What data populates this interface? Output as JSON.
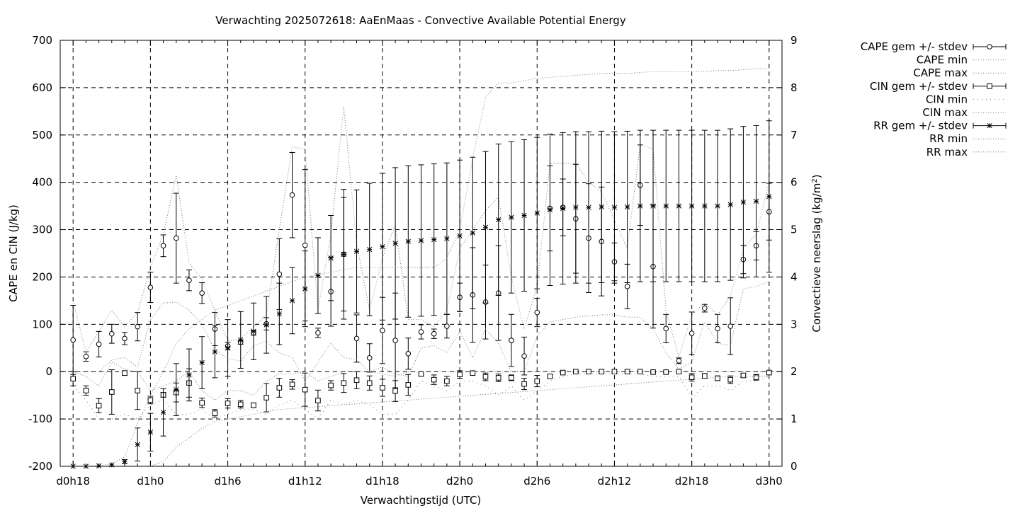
{
  "chart_data": {
    "type": "line",
    "title": "Verwachting 2025072618: AaEnMaas - Convective Available Potential Energy",
    "xlabel": "Verwachtingstijd (UTC)",
    "ylabel_left": "CAPE en CIN (J/kg)",
    "ylabel_right": "Convectieve neerslag (kg/m",
    "ylabel_right_sup": "2",
    "ylabel_right_end": ")",
    "x_unit": "hours since d0h18",
    "xlim": [
      -1,
      55
    ],
    "ylim_left": [
      -200,
      700
    ],
    "ylim_right": [
      0,
      9
    ],
    "y_ticks_left": [
      -200,
      -100,
      0,
      100,
      200,
      300,
      400,
      500,
      600,
      700
    ],
    "y_ticks_right": [
      0,
      1,
      2,
      3,
      4,
      5,
      6,
      7,
      8,
      9
    ],
    "x_ticks": [
      {
        "x": 0,
        "label": "d0h18"
      },
      {
        "x": 6,
        "label": "d1h0"
      },
      {
        "x": 12,
        "label": "d1h6"
      },
      {
        "x": 18,
        "label": "d1h12"
      },
      {
        "x": 24,
        "label": "d1h18"
      },
      {
        "x": 30,
        "label": "d2h0"
      },
      {
        "x": 36,
        "label": "d2h6"
      },
      {
        "x": 42,
        "label": "d2h12"
      },
      {
        "x": 48,
        "label": "d2h18"
      },
      {
        "x": 54,
        "label": "d3h0"
      }
    ],
    "grid": true,
    "legend_position": "outside-right",
    "legend": [
      {
        "label": "CAPE gem +/- stdev",
        "style": "errorbar",
        "marker": "circle"
      },
      {
        "label": "CAPE min",
        "style": "dotted"
      },
      {
        "label": "CAPE max",
        "style": "dotted"
      },
      {
        "label": "CIN gem +/- stdev",
        "style": "errorbar",
        "marker": "square"
      },
      {
        "label": "CIN min",
        "style": "dotted-coarse"
      },
      {
        "label": "CIN max",
        "style": "dotted"
      },
      {
        "label": "RR gem +/- stdev",
        "style": "errorbar",
        "marker": "star"
      },
      {
        "label": "RR min",
        "style": "dotted"
      },
      {
        "label": "RR max",
        "style": "dotted"
      }
    ],
    "series": [
      {
        "name": "CAPE gem +/- stdev",
        "axis": "left",
        "marker": "circle",
        "x": [
          0,
          1,
          2,
          3,
          4,
          5,
          6,
          7,
          8,
          9,
          10,
          11,
          12,
          13,
          14,
          15,
          16,
          17,
          18,
          19,
          20,
          21,
          22,
          23,
          24,
          25,
          26,
          27,
          28,
          29,
          30,
          31,
          32,
          33,
          34,
          35,
          36,
          37,
          38,
          39,
          40,
          41,
          42,
          43,
          44,
          45,
          46,
          47,
          48,
          49,
          50,
          51,
          52,
          53,
          54
        ],
        "y": [
          67,
          32,
          58,
          80,
          70,
          95,
          178,
          266,
          282,
          193,
          166,
          90,
          54,
          62,
          82,
          101,
          206,
          373,
          267,
          82,
          169,
          248,
          70,
          29,
          87,
          66,
          38,
          84,
          80,
          96,
          157,
          162,
          147,
          166,
          66,
          33,
          125,
          345,
          347,
          323,
          282,
          275,
          232,
          180,
          394,
          222,
          91,
          23,
          81,
          134,
          91,
          96,
          237,
          266,
          338
        ],
        "yerr": [
          73,
          10,
          27,
          20,
          13,
          30,
          32,
          23,
          95,
          22,
          22,
          35,
          8,
          4,
          5,
          13,
          75,
          90,
          160,
          10,
          73,
          137,
          50,
          30,
          70,
          100,
          33,
          15,
          10,
          25,
          30,
          100,
          78,
          100,
          55,
          40,
          30,
          90,
          60,
          115,
          115,
          115,
          40,
          47,
          85,
          130,
          30,
          6,
          45,
          8,
          30,
          60,
          30,
          30,
          60
        ]
      },
      {
        "name": "CAPE min",
        "axis": "left",
        "x": [
          0,
          1,
          2,
          3,
          4,
          5,
          6,
          7,
          8,
          9,
          10,
          11,
          12,
          13,
          14,
          15,
          16,
          17,
          18,
          19,
          20,
          21,
          22,
          23,
          24,
          25,
          26,
          27,
          28,
          29,
          30,
          31,
          32,
          33,
          34,
          35,
          36,
          37,
          38,
          39,
          40,
          41,
          42,
          43,
          44,
          45,
          46,
          47,
          48,
          49,
          50,
          51,
          52,
          53,
          54
        ],
        "y": [
          0,
          0,
          0,
          25,
          30,
          10,
          110,
          145,
          147,
          130,
          100,
          45,
          28,
          22,
          55,
          64,
          40,
          30,
          -20,
          20,
          60,
          30,
          25,
          0,
          10,
          -5,
          -10,
          50,
          55,
          40,
          85,
          30,
          90,
          60,
          0,
          0,
          75,
          105,
          110,
          115,
          118,
          120,
          120,
          115,
          115,
          90,
          40,
          5,
          20,
          105,
          60,
          55,
          175,
          180,
          190
        ]
      },
      {
        "name": "CAPE max",
        "axis": "left",
        "x": [
          0,
          1,
          2,
          3,
          4,
          5,
          6,
          7,
          8,
          9,
          10,
          11,
          12,
          13,
          14,
          15,
          16,
          17,
          18,
          19,
          20,
          21,
          22,
          23,
          24,
          25,
          26,
          27,
          28,
          29,
          30,
          31,
          32,
          33,
          34,
          35,
          36,
          37,
          38,
          39,
          40,
          41,
          42,
          43,
          44,
          45,
          46,
          47,
          48,
          49,
          50,
          51,
          52,
          53,
          54
        ],
        "y": [
          150,
          40,
          85,
          130,
          95,
          125,
          220,
          290,
          415,
          230,
          195,
          130,
          65,
          68,
          95,
          120,
          300,
          475,
          470,
          130,
          290,
          560,
          270,
          130,
          240,
          310,
          110,
          110,
          95,
          130,
          260,
          300,
          340,
          370,
          200,
          90,
          180,
          440,
          440,
          440,
          400,
          380,
          320,
          260,
          480,
          470,
          130,
          30,
          120,
          145,
          120,
          160,
          260,
          290,
          400
        ]
      },
      {
        "name": "CIN gem +/- stdev",
        "axis": "left",
        "marker": "square",
        "x": [
          0,
          1,
          2,
          3,
          4,
          5,
          6,
          7,
          8,
          9,
          10,
          11,
          12,
          13,
          14,
          15,
          16,
          17,
          18,
          19,
          20,
          21,
          22,
          23,
          24,
          25,
          26,
          27,
          28,
          29,
          30,
          31,
          32,
          33,
          34,
          35,
          36,
          37,
          38,
          39,
          40,
          41,
          42,
          43,
          44,
          45,
          46,
          47,
          48,
          49,
          50,
          51,
          52,
          53,
          54
        ],
        "y": [
          -15,
          -40,
          -72,
          -43,
          -3,
          -40,
          -60,
          -49,
          -44,
          -24,
          -66,
          -88,
          -67,
          -69,
          -71,
          -55,
          -34,
          -27,
          -38,
          -61,
          -29,
          -24,
          -18,
          -24,
          -34,
          -41,
          -28,
          -5,
          -17,
          -20,
          -6,
          -3,
          -11,
          -13,
          -13,
          -26,
          -20,
          -10,
          -2,
          0,
          0,
          0,
          0,
          0,
          0,
          -1,
          -1,
          0,
          -12,
          -9,
          -14,
          -17,
          -8,
          -12,
          -2
        ],
        "yerr": [
          15,
          10,
          15,
          47,
          5,
          40,
          8,
          5,
          20,
          30,
          10,
          8,
          10,
          8,
          5,
          30,
          20,
          10,
          35,
          22,
          10,
          20,
          18,
          15,
          18,
          22,
          22,
          4,
          10,
          10,
          8,
          3,
          8,
          8,
          6,
          12,
          12,
          3,
          2,
          1,
          1,
          1,
          1,
          1,
          1,
          1,
          1,
          1,
          8,
          5,
          5,
          8,
          4,
          6,
          2
        ]
      },
      {
        "name": "CIN min",
        "axis": "left",
        "dash": "coarse",
        "x": [
          0,
          1,
          2,
          3,
          4,
          5,
          6,
          7,
          8,
          9,
          10,
          11,
          12,
          13,
          14,
          15,
          16,
          17,
          18,
          19,
          20,
          21,
          22,
          23,
          24,
          25,
          26,
          27,
          28,
          29,
          30,
          31,
          32,
          33,
          34,
          35,
          36,
          37,
          38,
          39,
          40,
          41,
          42,
          43,
          44,
          45,
          46,
          47,
          48,
          49,
          50,
          51,
          52,
          53,
          54
        ],
        "y": [
          -30,
          -60,
          -100,
          -100,
          -90,
          -100,
          -70,
          -60,
          -90,
          -90,
          -80,
          -100,
          -90,
          -80,
          -80,
          -90,
          -70,
          -60,
          -80,
          -100,
          -60,
          -70,
          -60,
          -70,
          -90,
          -90,
          -60,
          -20,
          -30,
          -40,
          -20,
          -20,
          -30,
          -50,
          -30,
          -60,
          -40,
          -20,
          -10,
          -5,
          -5,
          -5,
          -5,
          -5,
          -5,
          -10,
          -10,
          -10,
          -55,
          -30,
          -30,
          -40,
          -20,
          -20,
          -10
        ]
      },
      {
        "name": "CIN max",
        "axis": "left",
        "x": [
          0,
          1,
          2,
          3,
          4,
          5,
          6,
          7,
          8,
          9,
          10,
          11,
          12,
          13,
          14,
          15,
          16,
          17,
          18,
          19,
          20,
          21,
          22,
          23,
          24,
          25,
          26,
          27,
          28,
          29,
          30,
          31,
          32,
          33,
          34,
          35,
          36,
          37,
          38,
          39,
          40,
          41,
          42,
          43,
          44,
          45,
          46,
          47,
          48,
          49,
          50,
          51,
          52,
          53,
          54
        ],
        "y": [
          0,
          -10,
          -30,
          20,
          5,
          0,
          -40,
          -30,
          -20,
          0,
          -40,
          -60,
          -40,
          -40,
          -50,
          -20,
          -5,
          -5,
          0,
          -20,
          -10,
          0,
          0,
          0,
          -5,
          -10,
          0,
          0,
          0,
          0,
          0,
          0,
          0,
          0,
          0,
          0,
          0,
          0,
          0,
          0,
          0,
          0,
          0,
          0,
          0,
          0,
          0,
          0,
          0,
          0,
          0,
          0,
          0,
          0,
          0
        ]
      },
      {
        "name": "RR gem +/- stdev",
        "axis": "right",
        "marker": "star",
        "x": [
          0,
          1,
          2,
          3,
          4,
          5,
          6,
          7,
          8,
          9,
          10,
          11,
          12,
          13,
          14,
          15,
          16,
          17,
          18,
          19,
          20,
          21,
          22,
          23,
          24,
          25,
          26,
          27,
          28,
          29,
          30,
          31,
          32,
          33,
          34,
          35,
          36,
          37,
          38,
          39,
          40,
          41,
          42,
          43,
          44,
          45,
          46,
          47,
          48,
          49,
          50,
          51,
          52,
          53,
          54
        ],
        "y": [
          0,
          0,
          0.01,
          0.03,
          0.1,
          0.46,
          0.72,
          1.14,
          1.62,
          1.93,
          2.19,
          2.42,
          2.5,
          2.67,
          2.85,
          2.99,
          3.22,
          3.5,
          3.75,
          4.03,
          4.4,
          4.48,
          4.54,
          4.58,
          4.64,
          4.71,
          4.75,
          4.77,
          4.79,
          4.81,
          4.87,
          4.93,
          5.05,
          5.21,
          5.26,
          5.3,
          5.35,
          5.42,
          5.45,
          5.47,
          5.47,
          5.48,
          5.47,
          5.48,
          5.5,
          5.5,
          5.5,
          5.5,
          5.5,
          5.5,
          5.5,
          5.53,
          5.58,
          5.6,
          5.7
        ],
        "yerr": [
          0,
          0,
          0,
          0,
          0.04,
          0.35,
          0.4,
          0.5,
          0.55,
          0.55,
          0.55,
          0.55,
          0.6,
          0.6,
          0.6,
          0.6,
          0.65,
          0.7,
          0.8,
          0.8,
          0.9,
          1.2,
          1.3,
          1.4,
          1.55,
          1.6,
          1.6,
          1.6,
          1.6,
          1.6,
          1.6,
          1.6,
          1.6,
          1.6,
          1.6,
          1.6,
          1.6,
          1.6,
          1.6,
          1.6,
          1.6,
          1.6,
          1.6,
          1.6,
          1.6,
          1.6,
          1.6,
          1.6,
          1.6,
          1.6,
          1.6,
          1.6,
          1.6,
          1.6,
          1.6
        ]
      },
      {
        "name": "RR min",
        "axis": "right",
        "x": [
          0,
          1,
          2,
          3,
          4,
          5,
          6,
          7,
          8,
          9,
          10,
          11,
          12,
          13,
          14,
          15,
          16,
          17,
          18,
          19,
          20,
          21,
          22,
          23,
          24,
          25,
          26,
          27,
          28,
          29,
          30,
          31,
          32,
          33,
          34,
          35,
          36,
          37,
          38,
          39,
          40,
          41,
          42,
          43,
          44,
          45,
          46,
          47,
          48,
          49,
          50,
          51,
          52,
          53,
          54
        ],
        "y": [
          0,
          0,
          0,
          0,
          0,
          0,
          0,
          0.1,
          0.4,
          0.6,
          0.8,
          0.95,
          1.0,
          1.05,
          1.1,
          1.15,
          1.2,
          1.22,
          1.24,
          1.26,
          1.28,
          1.3,
          1.32,
          1.34,
          1.36,
          1.38,
          1.4,
          1.42,
          1.44,
          1.46,
          1.48,
          1.5,
          1.52,
          1.54,
          1.56,
          1.58,
          1.6,
          1.62,
          1.64,
          1.66,
          1.68,
          1.7,
          1.72,
          1.74,
          1.76,
          1.78,
          1.8,
          1.82,
          1.84,
          1.86,
          1.88,
          1.9,
          1.9,
          1.9,
          1.9
        ]
      },
      {
        "name": "RR max",
        "axis": "right",
        "x": [
          0,
          1,
          2,
          3,
          4,
          5,
          6,
          7,
          8,
          9,
          10,
          11,
          12,
          13,
          14,
          15,
          16,
          17,
          18,
          19,
          20,
          21,
          22,
          23,
          24,
          25,
          26,
          27,
          28,
          29,
          30,
          31,
          32,
          33,
          34,
          35,
          36,
          37,
          38,
          39,
          40,
          41,
          42,
          43,
          44,
          45,
          46,
          47,
          48,
          49,
          50,
          51,
          52,
          53,
          54
        ],
        "y": [
          0,
          0,
          0.01,
          0.05,
          0.2,
          0.9,
          1.5,
          2.0,
          2.6,
          2.9,
          3.1,
          3.3,
          3.4,
          3.5,
          3.6,
          3.7,
          3.8,
          3.9,
          4.0,
          4.05,
          4.1,
          4.15,
          4.2,
          4.2,
          4.2,
          4.2,
          4.2,
          4.2,
          4.2,
          4.4,
          5.0,
          6.5,
          7.8,
          8.1,
          8.1,
          8.15,
          8.2,
          8.22,
          8.24,
          8.26,
          8.28,
          8.3,
          8.3,
          8.3,
          8.32,
          8.34,
          8.34,
          8.34,
          8.34,
          8.34,
          8.36,
          8.36,
          8.38,
          8.4,
          8.4
        ]
      }
    ]
  }
}
